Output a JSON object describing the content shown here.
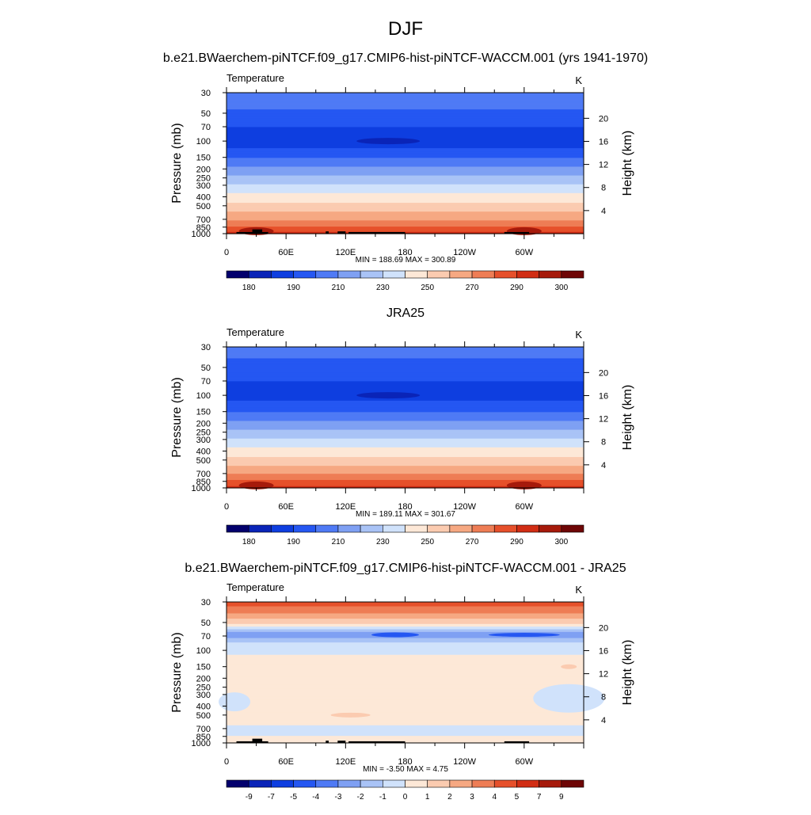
{
  "page": {
    "title": "DJF"
  },
  "palette": {
    "temperature": [
      "#03006d",
      "#0a24b8",
      "#0e3ee0",
      "#2557f2",
      "#4f7af5",
      "#7fa0f3",
      "#a9c3f6",
      "#d0e2fb",
      "#fde8d7",
      "#fbcbb0",
      "#f6a882",
      "#ee7d55",
      "#e6502b",
      "#d12d14",
      "#a61a0b",
      "#6e0606"
    ],
    "temperature_levels": [
      175,
      180,
      185,
      190,
      200,
      210,
      220,
      230,
      240,
      250,
      260,
      270,
      280,
      290,
      295,
      300
    ],
    "difference": [
      "#03006d",
      "#0a24b8",
      "#0e3ee0",
      "#2557f2",
      "#4f7af5",
      "#7fa0f3",
      "#a9c3f6",
      "#d0e2fb",
      "#fde8d7",
      "#fbcbb0",
      "#f6a882",
      "#ee7d55",
      "#e6502b",
      "#d12d14",
      "#a61a0b",
      "#6e0606"
    ],
    "difference_levels": [
      -10,
      -9,
      -7,
      -5,
      -4,
      -3,
      -2,
      -1,
      0,
      1,
      2,
      3,
      4,
      5,
      7,
      9
    ]
  },
  "chart_data": [
    {
      "type": "heatmap",
      "title": "b.e21.BWaerchem-piNTCF.f09_g17.CMIP6-hist-piNTCF-WACCM.001 (yrs 1941-1970)",
      "left_label": "Temperature",
      "units": "K",
      "ylabel": "Pressure (mb)",
      "y2label": "Height (km)",
      "xticks": [
        "0",
        "60E",
        "120E",
        "180",
        "120W",
        "60W"
      ],
      "xtick_lon": [
        0,
        60,
        120,
        180,
        240,
        300
      ],
      "xlim": [
        0,
        360
      ],
      "yticks": [
        30,
        50,
        70,
        100,
        150,
        200,
        250,
        300,
        400,
        500,
        700,
        850,
        1000
      ],
      "ylim": [
        30,
        1000
      ],
      "height_ticks": [
        20,
        16,
        12,
        8,
        4
      ],
      "stats": "MIN = 188.69  MAX = 300.89",
      "profile": {
        "p": [
          30,
          40,
          50,
          60,
          70,
          85,
          100,
          125,
          150,
          175,
          200,
          250,
          300,
          350,
          400,
          500,
          600,
          700,
          800,
          850,
          925,
          1000
        ],
        "val": [
          207,
          205,
          197,
          193,
          190,
          187,
          186,
          191,
          199,
          206,
          213,
          222,
          231,
          238,
          244,
          253,
          262,
          269,
          276,
          281,
          287,
          293
        ]
      },
      "colorbar_labels": [
        "180",
        "190",
        "210",
        "230",
        "250",
        "270",
        "290",
        "300"
      ],
      "colorbar_label_positions": [
        1,
        3,
        5,
        7,
        9,
        11,
        13,
        15
      ],
      "topography": true,
      "palette": "temperature"
    },
    {
      "type": "heatmap",
      "title": "JRA25",
      "left_label": "Temperature",
      "units": "K",
      "ylabel": "Pressure (mb)",
      "y2label": "Height (km)",
      "xticks": [
        "0",
        "60E",
        "120E",
        "180",
        "120W",
        "60W"
      ],
      "xtick_lon": [
        0,
        60,
        120,
        180,
        240,
        300
      ],
      "xlim": [
        0,
        360
      ],
      "yticks": [
        30,
        50,
        70,
        100,
        150,
        200,
        250,
        300,
        400,
        500,
        700,
        850,
        1000
      ],
      "ylim": [
        30,
        1000
      ],
      "height_ticks": [
        20,
        16,
        12,
        8,
        4
      ],
      "stats": "MIN = 189.11  MAX = 301.67",
      "profile": {
        "p": [
          30,
          40,
          50,
          60,
          70,
          85,
          100,
          125,
          150,
          175,
          200,
          250,
          300,
          350,
          400,
          500,
          600,
          700,
          800,
          850,
          925,
          1000
        ],
        "val": [
          203,
          200,
          196,
          192,
          190,
          188,
          187,
          192,
          199,
          206,
          213,
          222,
          231,
          238,
          244,
          253,
          262,
          270,
          277,
          282,
          288,
          294
        ]
      },
      "colorbar_labels": [
        "180",
        "190",
        "210",
        "230",
        "250",
        "270",
        "290",
        "300"
      ],
      "colorbar_label_positions": [
        1,
        3,
        5,
        7,
        9,
        11,
        13,
        15
      ],
      "topography": false,
      "palette": "temperature"
    },
    {
      "type": "heatmap",
      "title": "b.e21.BWaerchem-piNTCF.f09_g17.CMIP6-hist-piNTCF-WACCM.001 - JRA25",
      "left_label": "Temperature",
      "units": "K",
      "ylabel": "Pressure (mb)",
      "y2label": "Height (km)",
      "xticks": [
        "0",
        "60E",
        "120E",
        "180",
        "120W",
        "60W"
      ],
      "xtick_lon": [
        0,
        60,
        120,
        180,
        240,
        300
      ],
      "xlim": [
        0,
        360
      ],
      "yticks": [
        30,
        50,
        70,
        100,
        150,
        200,
        250,
        300,
        400,
        500,
        700,
        850,
        1000
      ],
      "ylim": [
        30,
        1000
      ],
      "height_ticks": [
        20,
        16,
        12,
        8,
        4
      ],
      "stats": "MIN =  -3.50  MAX =   4.75",
      "profile": {
        "p": [
          30,
          38,
          45,
          52,
          58,
          63,
          68,
          75,
          85,
          100,
          125,
          150,
          200,
          300,
          400,
          500,
          600,
          700,
          800,
          850,
          925,
          1000
        ],
        "val": [
          4.5,
          3.5,
          2.0,
          1.0,
          -0.5,
          -2.0,
          -2.5,
          -1.8,
          -0.8,
          -0.4,
          0.4,
          0.3,
          0.2,
          0.2,
          0.2,
          0.2,
          0.2,
          -0.3,
          -0.4,
          0.2,
          0.3,
          0.2
        ]
      },
      "colorbar_labels": [
        "-9",
        "-7",
        "-5",
        "-4",
        "-3",
        "-2",
        "-1",
        "0",
        "1",
        "2",
        "3",
        "4",
        "5",
        "7",
        "9"
      ],
      "colorbar_label_positions": [
        1,
        2,
        3,
        4,
        5,
        6,
        7,
        8,
        9,
        10,
        11,
        12,
        13,
        14,
        15
      ],
      "topography": true,
      "palette": "difference"
    }
  ]
}
